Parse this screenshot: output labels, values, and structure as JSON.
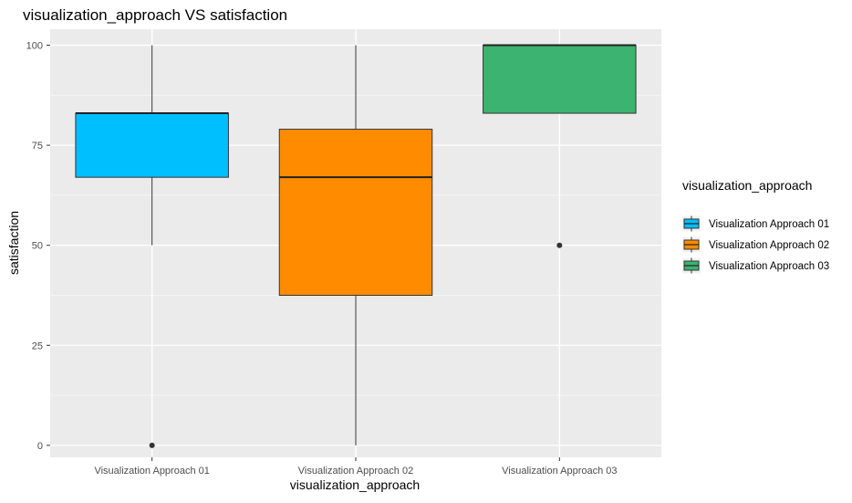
{
  "chart_data": {
    "type": "boxplot",
    "title": "visualization_approach VS satisfaction",
    "xlabel": "visualization_approach",
    "ylabel": "satisfaction",
    "ylim": [
      -3,
      104
    ],
    "yticks": [
      0,
      25,
      50,
      75,
      100
    ],
    "categories": [
      "Visualization Approach 01",
      "Visualization Approach 02",
      "Visualization Approach 03"
    ],
    "boxes": [
      {
        "category": "Visualization Approach 01",
        "whisker_low": 50,
        "q1": 67,
        "median": 83,
        "q3": 83,
        "whisker_high": 100,
        "outliers": [
          0
        ],
        "color": "#00BFFF"
      },
      {
        "category": "Visualization Approach 02",
        "whisker_low": 0,
        "q1": 37.5,
        "median": 67,
        "q3": 79,
        "whisker_high": 100,
        "outliers": [],
        "color": "#FF8C00"
      },
      {
        "category": "Visualization Approach 03",
        "whisker_low": 83,
        "q1": 83,
        "median": 100,
        "q3": 100,
        "whisker_high": 100,
        "outliers": [
          50
        ],
        "color": "#3CB371"
      }
    ],
    "legend": {
      "title": "visualization_approach",
      "position": "right",
      "entries": [
        "Visualization Approach 01",
        "Visualization Approach 02",
        "Visualization Approach 03"
      ]
    },
    "grid": true,
    "panel_background": "#EBEBEB"
  }
}
